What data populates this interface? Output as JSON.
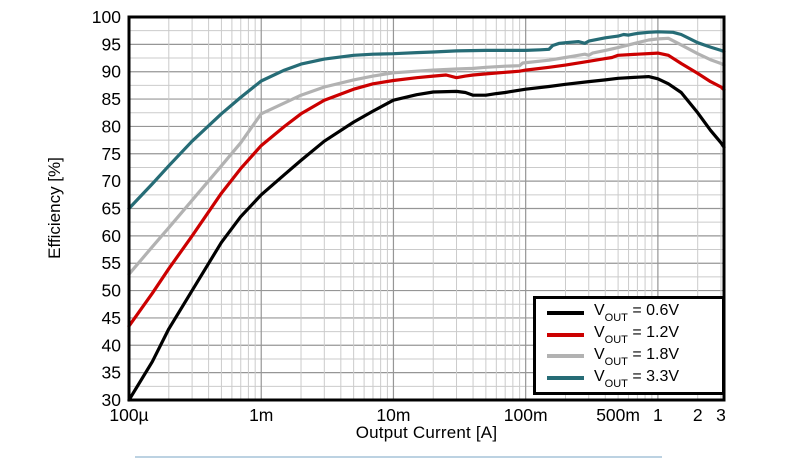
{
  "chart_data": {
    "type": "line",
    "title": "",
    "xlabel": "Output Current [A]",
    "ylabel": "Efficiency [%]",
    "x_scale": "log",
    "xlim": [
      0.0001,
      3.162
    ],
    "ylim": [
      30,
      100
    ],
    "grid": true,
    "y_major_step": 5,
    "y_minor_step": 2.5,
    "x_ticks": [
      {
        "value": 0.0001,
        "label": "100µ"
      },
      {
        "value": 0.001,
        "label": "1m"
      },
      {
        "value": 0.01,
        "label": "10m"
      },
      {
        "value": 0.1,
        "label": "100m"
      },
      {
        "value": 0.5,
        "label": "500m"
      },
      {
        "value": 1,
        "label": "1"
      },
      {
        "value": 2,
        "label": "2"
      },
      {
        "value": 3,
        "label": "3"
      }
    ],
    "y_ticks": [
      100,
      95,
      90,
      85,
      80,
      75,
      70,
      65,
      60,
      55,
      50,
      45,
      40,
      35,
      30
    ],
    "legend": {
      "position": "lower right"
    },
    "series": [
      {
        "name": "VOUT = 0.6V",
        "label_base": "V",
        "label_sub": "OUT",
        "label_rest": " = 0.6V",
        "color": "#000000",
        "points": [
          [
            0.0001,
            30
          ],
          [
            0.00015,
            37
          ],
          [
            0.0002,
            43
          ],
          [
            0.0003,
            50
          ],
          [
            0.0005,
            58.8
          ],
          [
            0.0007,
            63.5
          ],
          [
            0.001,
            67.5
          ],
          [
            0.0015,
            71.2
          ],
          [
            0.002,
            73.8
          ],
          [
            0.003,
            77.3
          ],
          [
            0.005,
            80.8
          ],
          [
            0.007,
            82.8
          ],
          [
            0.01,
            84.8
          ],
          [
            0.015,
            85.8
          ],
          [
            0.02,
            86.3
          ],
          [
            0.03,
            86.4
          ],
          [
            0.035,
            86.2
          ],
          [
            0.04,
            85.7
          ],
          [
            0.05,
            85.7
          ],
          [
            0.06,
            86.0
          ],
          [
            0.07,
            86.2
          ],
          [
            0.1,
            86.8
          ],
          [
            0.15,
            87.3
          ],
          [
            0.2,
            87.7
          ],
          [
            0.3,
            88.2
          ],
          [
            0.4,
            88.5
          ],
          [
            0.5,
            88.8
          ],
          [
            0.7,
            89.0
          ],
          [
            0.85,
            89.1
          ],
          [
            1,
            88.7
          ],
          [
            1.2,
            87.8
          ],
          [
            1.5,
            86.2
          ],
          [
            2,
            82.5
          ],
          [
            2.5,
            79.3
          ],
          [
            3,
            77.0
          ],
          [
            3.16,
            76.2
          ]
        ]
      },
      {
        "name": "VOUT = 1.2V",
        "label_base": "V",
        "label_sub": "OUT",
        "label_rest": " = 1.2V",
        "color": "#cc0000",
        "points": [
          [
            0.0001,
            43.5
          ],
          [
            0.00015,
            49.5
          ],
          [
            0.0002,
            54
          ],
          [
            0.0003,
            60
          ],
          [
            0.0005,
            67.8
          ],
          [
            0.0007,
            72.3
          ],
          [
            0.001,
            76.5
          ],
          [
            0.0015,
            80
          ],
          [
            0.002,
            82.3
          ],
          [
            0.003,
            84.8
          ],
          [
            0.005,
            86.8
          ],
          [
            0.007,
            87.8
          ],
          [
            0.01,
            88.4
          ],
          [
            0.015,
            88.9
          ],
          [
            0.02,
            89.2
          ],
          [
            0.025,
            89.4
          ],
          [
            0.03,
            88.9
          ],
          [
            0.035,
            89.2
          ],
          [
            0.04,
            89.4
          ],
          [
            0.05,
            89.6
          ],
          [
            0.07,
            89.9
          ],
          [
            0.09,
            90.1
          ],
          [
            0.1,
            90.3
          ],
          [
            0.15,
            90.8
          ],
          [
            0.2,
            91.2
          ],
          [
            0.3,
            91.9
          ],
          [
            0.4,
            92.4
          ],
          [
            0.45,
            92.6
          ],
          [
            0.5,
            93.0
          ],
          [
            0.7,
            93.2
          ],
          [
            1,
            93.4
          ],
          [
            1.2,
            93.0
          ],
          [
            1.5,
            91.5
          ],
          [
            2,
            89.7
          ],
          [
            2.5,
            88.2
          ],
          [
            3,
            87.2
          ],
          [
            3.16,
            86.7
          ]
        ]
      },
      {
        "name": "VOUT = 1.8V",
        "label_base": "V",
        "label_sub": "OUT",
        "label_rest": " = 1.8V",
        "color": "#b2b2b2",
        "points": [
          [
            0.0001,
            53
          ],
          [
            0.00015,
            58
          ],
          [
            0.0002,
            61.5
          ],
          [
            0.0003,
            66.5
          ],
          [
            0.0005,
            72.8
          ],
          [
            0.0007,
            77
          ],
          [
            0.001,
            82.3
          ],
          [
            0.0015,
            84.3
          ],
          [
            0.002,
            85.7
          ],
          [
            0.003,
            87.2
          ],
          [
            0.005,
            88.5
          ],
          [
            0.007,
            89.2
          ],
          [
            0.01,
            89.8
          ],
          [
            0.015,
            90.1
          ],
          [
            0.02,
            90.3
          ],
          [
            0.03,
            90.5
          ],
          [
            0.04,
            90.6
          ],
          [
            0.05,
            90.8
          ],
          [
            0.07,
            91.0
          ],
          [
            0.09,
            91.1
          ],
          [
            0.095,
            91.6
          ],
          [
            0.15,
            92.1
          ],
          [
            0.2,
            92.6
          ],
          [
            0.25,
            93.0
          ],
          [
            0.28,
            93.2
          ],
          [
            0.3,
            93.0
          ],
          [
            0.32,
            93.4
          ],
          [
            0.4,
            93.9
          ],
          [
            0.5,
            94.4
          ],
          [
            0.7,
            95.3
          ],
          [
            0.85,
            95.8
          ],
          [
            1,
            96.0
          ],
          [
            1.2,
            96.1
          ],
          [
            1.5,
            94.9
          ],
          [
            2,
            93.3
          ],
          [
            2.5,
            92.2
          ],
          [
            3,
            91.5
          ],
          [
            3.16,
            91.2
          ]
        ]
      },
      {
        "name": "VOUT = 3.3V",
        "label_base": "V",
        "label_sub": "OUT",
        "label_rest": " = 3.3V",
        "color": "#266c76",
        "points": [
          [
            0.0001,
            65
          ],
          [
            0.00015,
            69.5
          ],
          [
            0.0002,
            72.8
          ],
          [
            0.0003,
            77.3
          ],
          [
            0.0005,
            82.3
          ],
          [
            0.0007,
            85.3
          ],
          [
            0.001,
            88.3
          ],
          [
            0.0015,
            90.3
          ],
          [
            0.002,
            91.4
          ],
          [
            0.003,
            92.3
          ],
          [
            0.005,
            93.0
          ],
          [
            0.007,
            93.2
          ],
          [
            0.01,
            93.3
          ],
          [
            0.015,
            93.5
          ],
          [
            0.02,
            93.6
          ],
          [
            0.03,
            93.8
          ],
          [
            0.05,
            93.9
          ],
          [
            0.07,
            93.9
          ],
          [
            0.1,
            93.9
          ],
          [
            0.13,
            94.0
          ],
          [
            0.15,
            94.1
          ],
          [
            0.16,
            94.8
          ],
          [
            0.18,
            95.2
          ],
          [
            0.2,
            95.3
          ],
          [
            0.25,
            95.5
          ],
          [
            0.28,
            95.2
          ],
          [
            0.3,
            95.6
          ],
          [
            0.4,
            96.2
          ],
          [
            0.5,
            96.5
          ],
          [
            0.55,
            96.8
          ],
          [
            0.6,
            96.7
          ],
          [
            0.7,
            97.0
          ],
          [
            0.85,
            97.2
          ],
          [
            1,
            97.3
          ],
          [
            1.3,
            97.2
          ],
          [
            1.5,
            96.8
          ],
          [
            2,
            95.3
          ],
          [
            2.5,
            94.5
          ],
          [
            3,
            93.9
          ],
          [
            3.16,
            93.7
          ]
        ]
      }
    ]
  },
  "colors": {
    "frame": "#000000",
    "grid_minor": "#cbcbcb",
    "grid_major": "#969696",
    "tick_text": "#000000",
    "accent_underline": "#bcd2e2"
  }
}
